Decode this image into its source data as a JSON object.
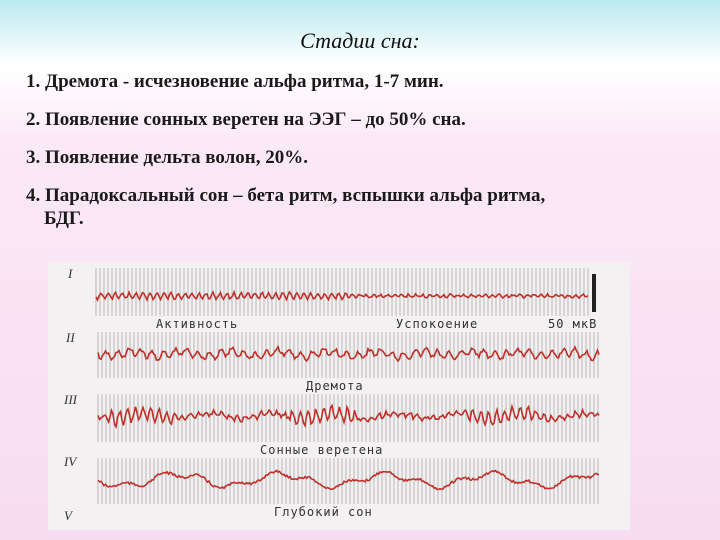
{
  "slide": {
    "title": "Стадии сна:",
    "items": [
      {
        "text": "1. Дремота - исчезновение альфа ритма, 1-7 мин."
      },
      {
        "text": "2. Появление сонных веретен на ЭЭГ – до 50%  сна."
      },
      {
        "text": "3. Появление дельта волон, 20%."
      },
      {
        "text": "4. Парадоксальный сон – бета ритм, вспышки альфа ритма,",
        "cont": "БДГ."
      }
    ]
  },
  "eeg_figure": {
    "traces": [
      {
        "roman": "I",
        "caption_left": "Активность",
        "caption_right": "Успокоение",
        "scale": "50 мкВ"
      },
      {
        "roman": "II",
        "caption": "Дремота"
      },
      {
        "roman": "III",
        "caption": "Сонные веретена"
      },
      {
        "roman": "IV",
        "caption": "Глубокий сон"
      },
      {
        "roman": "V",
        "caption": ""
      }
    ],
    "trace_color": "#c0302a",
    "grid_color": "#a9a9a9"
  }
}
